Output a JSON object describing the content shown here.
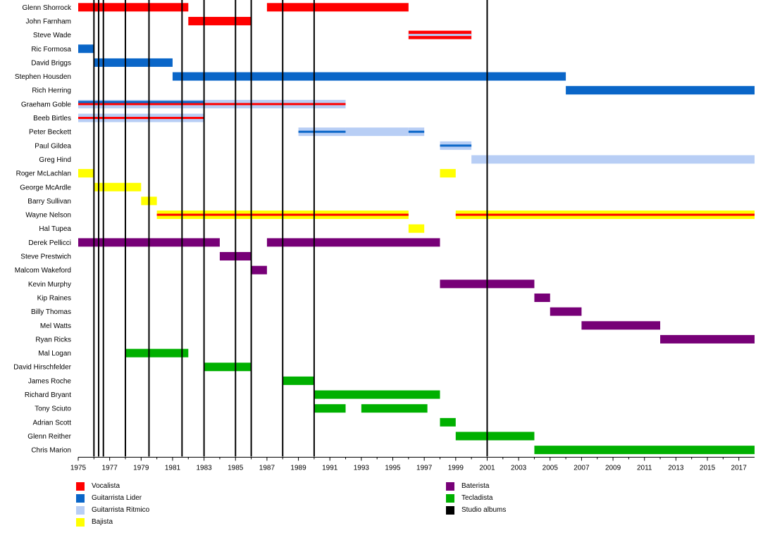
{
  "chart_data": {
    "type": "timeline",
    "xlim": [
      1975,
      2018
    ],
    "x_ticks": [
      "1975",
      "1977",
      "1979",
      "1981",
      "1983",
      "1985",
      "1987",
      "1989",
      "1991",
      "1993",
      "1995",
      "1997",
      "1999",
      "2001",
      "2003",
      "2005",
      "2007",
      "2009",
      "2011",
      "2013",
      "2015",
      "2017"
    ],
    "studio_albums": [
      1976,
      1976.3,
      1976.6,
      1978,
      1979.5,
      1981.6,
      1983,
      1985,
      1986,
      1988,
      1990,
      2001
    ],
    "members": [
      {
        "name": "Glenn Shorrock",
        "bars": [
          {
            "start": 1975,
            "end": 1982,
            "role": "vocalist"
          },
          {
            "start": 1987,
            "end": 1996,
            "role": "vocalist"
          }
        ]
      },
      {
        "name": "John Farnham",
        "bars": [
          {
            "start": 1982,
            "end": 1986,
            "role": "vocalist"
          }
        ]
      },
      {
        "name": "Steve Wade",
        "bars": [
          {
            "start": 1996,
            "end": 2000,
            "role": "vocalist",
            "inner": "rhythm"
          }
        ]
      },
      {
        "name": "Ric Formosa",
        "bars": [
          {
            "start": 1975,
            "end": 1976,
            "role": "lead"
          }
        ]
      },
      {
        "name": "David Briggs",
        "bars": [
          {
            "start": 1976,
            "end": 1981,
            "role": "lead"
          }
        ]
      },
      {
        "name": "Stephen Housden",
        "bars": [
          {
            "start": 1981,
            "end": 2006,
            "role": "lead"
          }
        ]
      },
      {
        "name": "Rich Herring",
        "bars": [
          {
            "start": 2006,
            "end": 2018,
            "role": "lead"
          }
        ]
      },
      {
        "name": "Graeham Goble",
        "bars": [
          {
            "start": 1975,
            "end": 1983,
            "role": "rhythm",
            "inner": "vocalist",
            "inner2": "lead"
          },
          {
            "start": 1983,
            "end": 1992,
            "role": "rhythm",
            "inner": "vocalist"
          }
        ]
      },
      {
        "name": "Beeb Birtles",
        "bars": [
          {
            "start": 1975,
            "end": 1983,
            "role": "rhythm",
            "inner": "vocalist"
          }
        ]
      },
      {
        "name": "Peter Beckett",
        "bars": [
          {
            "start": 1989,
            "end": 1992,
            "role": "rhythm",
            "inner": "lead"
          },
          {
            "start": 1992,
            "end": 1996,
            "role": "rhythm"
          },
          {
            "start": 1996,
            "end": 1997,
            "role": "rhythm",
            "inner": "lead"
          }
        ]
      },
      {
        "name": "Paul Gildea",
        "bars": [
          {
            "start": 1998,
            "end": 2000,
            "role": "rhythm",
            "inner": "lead"
          }
        ]
      },
      {
        "name": "Greg Hind",
        "bars": [
          {
            "start": 2000,
            "end": 2018,
            "role": "rhythm"
          }
        ]
      },
      {
        "name": "Roger McLachlan",
        "bars": [
          {
            "start": 1975,
            "end": 1976,
            "role": "bass"
          },
          {
            "start": 1998,
            "end": 1999,
            "role": "bass"
          }
        ]
      },
      {
        "name": "George McArdle",
        "bars": [
          {
            "start": 1976,
            "end": 1979,
            "role": "bass"
          }
        ]
      },
      {
        "name": "Barry Sullivan",
        "bars": [
          {
            "start": 1979,
            "end": 1980,
            "role": "bass"
          }
        ]
      },
      {
        "name": "Wayne Nelson",
        "bars": [
          {
            "start": 1980,
            "end": 1996,
            "role": "bass",
            "inner": "vocalist"
          },
          {
            "start": 1999,
            "end": 2018,
            "role": "bass",
            "inner": "vocalist"
          }
        ]
      },
      {
        "name": "Hal Tupea",
        "bars": [
          {
            "start": 1996,
            "end": 1997,
            "role": "bass"
          }
        ]
      },
      {
        "name": "Derek Pellicci",
        "bars": [
          {
            "start": 1975,
            "end": 1984,
            "role": "drums"
          },
          {
            "start": 1987,
            "end": 1998,
            "role": "drums"
          }
        ]
      },
      {
        "name": "Steve Prestwich",
        "bars": [
          {
            "start": 1984,
            "end": 1986,
            "role": "drums"
          }
        ]
      },
      {
        "name": "Malcom Wakeford",
        "bars": [
          {
            "start": 1986,
            "end": 1987,
            "role": "drums"
          }
        ]
      },
      {
        "name": "Kevin Murphy",
        "bars": [
          {
            "start": 1998,
            "end": 2004,
            "role": "drums"
          }
        ]
      },
      {
        "name": "Kip Raines",
        "bars": [
          {
            "start": 2004,
            "end": 2005,
            "role": "drums"
          }
        ]
      },
      {
        "name": "Billy Thomas",
        "bars": [
          {
            "start": 2005,
            "end": 2007,
            "role": "drums"
          }
        ]
      },
      {
        "name": "Mel Watts",
        "bars": [
          {
            "start": 2007,
            "end": 2012,
            "role": "drums"
          }
        ]
      },
      {
        "name": "Ryan Ricks",
        "bars": [
          {
            "start": 2012,
            "end": 2018,
            "role": "drums"
          }
        ]
      },
      {
        "name": "Mal Logan",
        "bars": [
          {
            "start": 1978,
            "end": 1982,
            "role": "keys"
          }
        ]
      },
      {
        "name": "David Hirschfelder",
        "bars": [
          {
            "start": 1983,
            "end": 1986,
            "role": "keys"
          }
        ]
      },
      {
        "name": "James Roche",
        "bars": [
          {
            "start": 1988,
            "end": 1990,
            "role": "keys"
          }
        ]
      },
      {
        "name": "Richard Bryant",
        "bars": [
          {
            "start": 1990,
            "end": 1998,
            "role": "keys"
          }
        ]
      },
      {
        "name": "Tony Sciuto",
        "bars": [
          {
            "start": 1990,
            "end": 1992,
            "role": "keys"
          },
          {
            "start": 1993,
            "end": 1997.2,
            "role": "keys"
          }
        ]
      },
      {
        "name": "Adrian Scott",
        "bars": [
          {
            "start": 1998,
            "end": 1999,
            "role": "keys"
          }
        ]
      },
      {
        "name": "Glenn Reither",
        "bars": [
          {
            "start": 1999,
            "end": 2004,
            "role": "keys"
          }
        ]
      },
      {
        "name": "Chris Marion",
        "bars": [
          {
            "start": 2004,
            "end": 2018,
            "role": "keys"
          }
        ]
      }
    ],
    "legend": [
      {
        "key": "vocalist",
        "label": "Vocalista",
        "color": "#ff0000"
      },
      {
        "key": "lead",
        "label": "Guitarrista Lider",
        "color": "#0a66c8"
      },
      {
        "key": "rhythm",
        "label": "Guitarrista Ritmico",
        "color": "#b8cef5"
      },
      {
        "key": "bass",
        "label": "Bajista",
        "color": "#ffff00"
      },
      {
        "key": "drums",
        "label": "Baterista",
        "color": "#770077"
      },
      {
        "key": "keys",
        "label": "Tecladista",
        "color": "#00b000"
      },
      {
        "key": "albums",
        "label": "Studio albums",
        "color": "#000000"
      }
    ]
  }
}
